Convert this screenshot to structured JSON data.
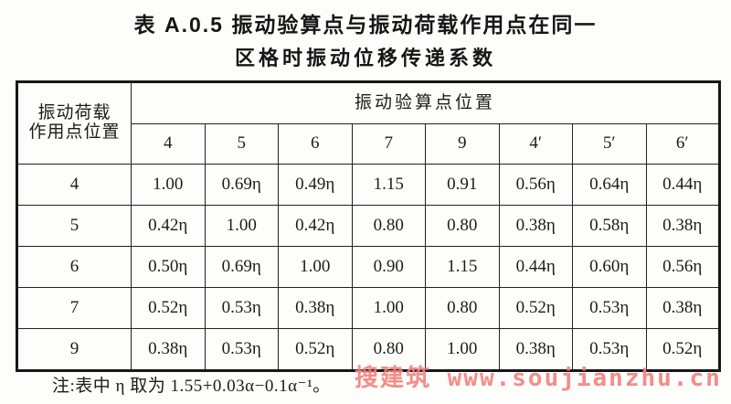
{
  "title": {
    "line1": "表 A.0.5  振动验算点与振动荷载作用点在同一",
    "line2": "区格时振动位移传递系数"
  },
  "note": {
    "text": "注:表中 η 取为 1.55+0.03α−0.1α⁻¹。"
  },
  "watermark": {
    "text": "搜建筑 www.soujianzhu.cn",
    "color": "#f2827e"
  },
  "chart_data": {
    "type": "table",
    "corner_line1": "振动荷载",
    "corner_line2": "作用点位置",
    "col_group_label": "振动验算点位置",
    "columns": [
      "4",
      "5",
      "6",
      "7",
      "9",
      "4′",
      "5′",
      "6′"
    ],
    "rows": [
      {
        "label": "4",
        "values": [
          "1.00",
          "0.69η",
          "0.49η",
          "1.15",
          "0.91",
          "0.56η",
          "0.64η",
          "0.44η"
        ]
      },
      {
        "label": "5",
        "values": [
          "0.42η",
          "1.00",
          "0.42η",
          "0.80",
          "0.80",
          "0.38η",
          "0.58η",
          "0.38η"
        ]
      },
      {
        "label": "6",
        "values": [
          "0.50η",
          "0.69η",
          "1.00",
          "0.90",
          "1.15",
          "0.44η",
          "0.60η",
          "0.56η"
        ]
      },
      {
        "label": "7",
        "values": [
          "0.52η",
          "0.53η",
          "0.38η",
          "1.00",
          "0.80",
          "0.52η",
          "0.53η",
          "0.38η"
        ]
      },
      {
        "label": "9",
        "values": [
          "0.38η",
          "0.53η",
          "0.52η",
          "0.80",
          "1.00",
          "0.38η",
          "0.53η",
          "0.52η"
        ]
      }
    ]
  }
}
